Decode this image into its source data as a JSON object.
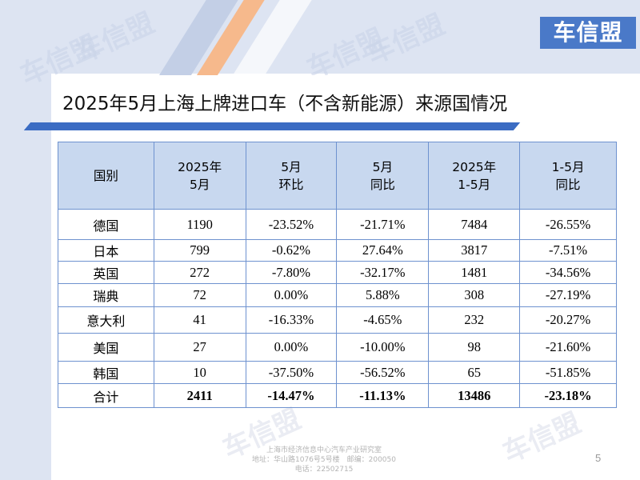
{
  "brand": {
    "logo_text": "车信盟",
    "watermark_text": "车信盟"
  },
  "title": "2025年5月上海上牌进口车（不含新能源）来源国情况",
  "table": {
    "headers": [
      {
        "line1": "国别",
        "line2": ""
      },
      {
        "line1": "2025年",
        "line2": "5月"
      },
      {
        "line1": "5月",
        "line2": "环比"
      },
      {
        "line1": "5月",
        "line2": "同比"
      },
      {
        "line1": "2025年",
        "line2": "1-5月"
      },
      {
        "line1": "1-5月",
        "line2": "同比"
      }
    ],
    "rows": [
      [
        "德国",
        "1190",
        "-23.52%",
        "-21.71%",
        "7484",
        "-26.55%"
      ],
      [
        "日本",
        "799",
        "-0.62%",
        "27.64%",
        "3817",
        "-7.51%"
      ],
      [
        "英国",
        "272",
        "-7.80%",
        "-32.17%",
        "1481",
        "-34.56%"
      ],
      [
        "瑞典",
        "72",
        "0.00%",
        "5.88%",
        "308",
        "-27.19%"
      ],
      [
        "意大利",
        "41",
        "-16.33%",
        "-4.65%",
        "232",
        "-20.27%"
      ],
      [
        "美国",
        "27",
        "0.00%",
        "-10.00%",
        "98",
        "-21.60%"
      ],
      [
        "韩国",
        "10",
        "-37.50%",
        "-56.52%",
        "65",
        "-51.85%"
      ]
    ],
    "total": [
      "合计",
      "2411",
      "-14.47%",
      "-11.13%",
      "13486",
      "-23.18%"
    ]
  },
  "footer": {
    "line1": "上海市经济信息中心汽车产业研究室",
    "line2": "地址：华山路1076号5号楼　邮编：200050",
    "line3": "电话：22502715"
  },
  "page_number": "5",
  "colors": {
    "accent": "#3b6cc3",
    "header_fill": "#c8d8ef",
    "border": "#6e92cf",
    "logo_bg": "#4a79c8",
    "band": "#dde4f2"
  }
}
